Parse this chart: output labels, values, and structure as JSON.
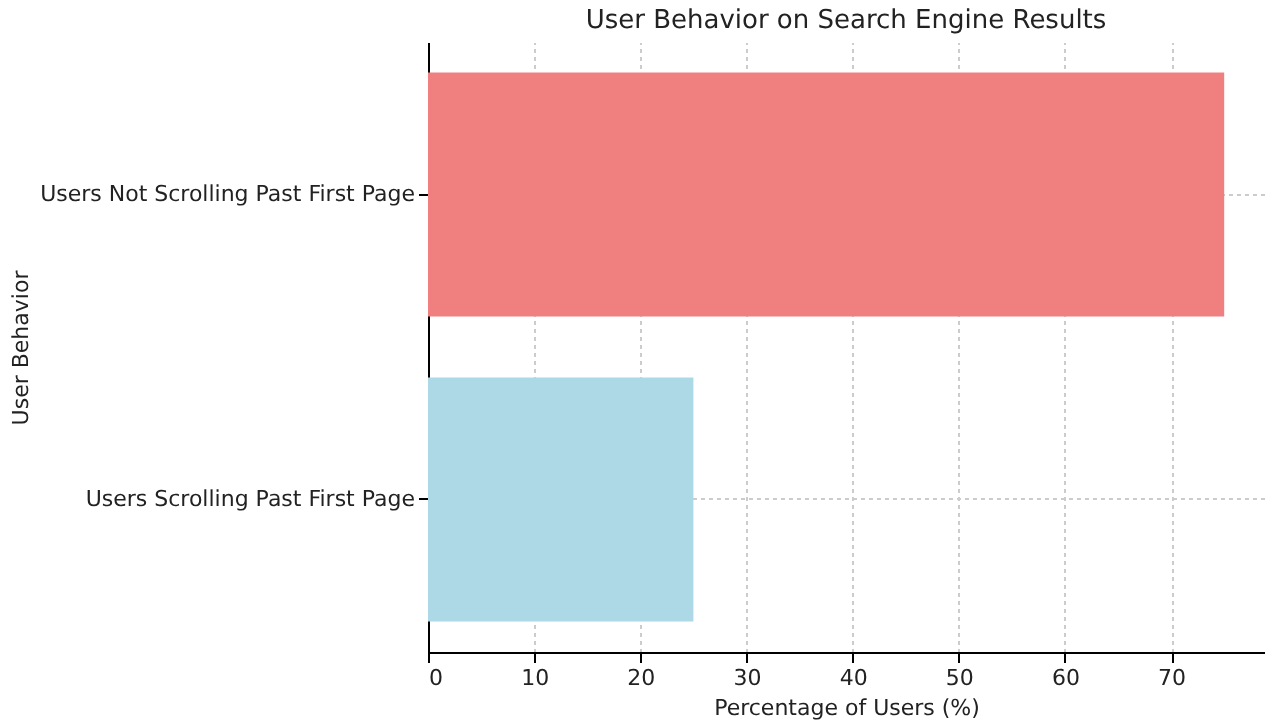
{
  "chart_data": {
    "type": "bar",
    "orientation": "horizontal",
    "title": "User Behavior on Search Engine Results",
    "xlabel": "Percentage of Users (%)",
    "ylabel": "User Behavior",
    "categories": [
      "Users Not Scrolling Past First Page",
      "Users Scrolling Past First Page"
    ],
    "values": [
      75,
      25
    ],
    "colors": [
      "#f08080",
      "#add8e6"
    ],
    "xlim": [
      0,
      78.75
    ],
    "xticks": [
      0,
      10,
      20,
      30,
      40,
      50,
      60,
      70
    ],
    "grid": true
  }
}
